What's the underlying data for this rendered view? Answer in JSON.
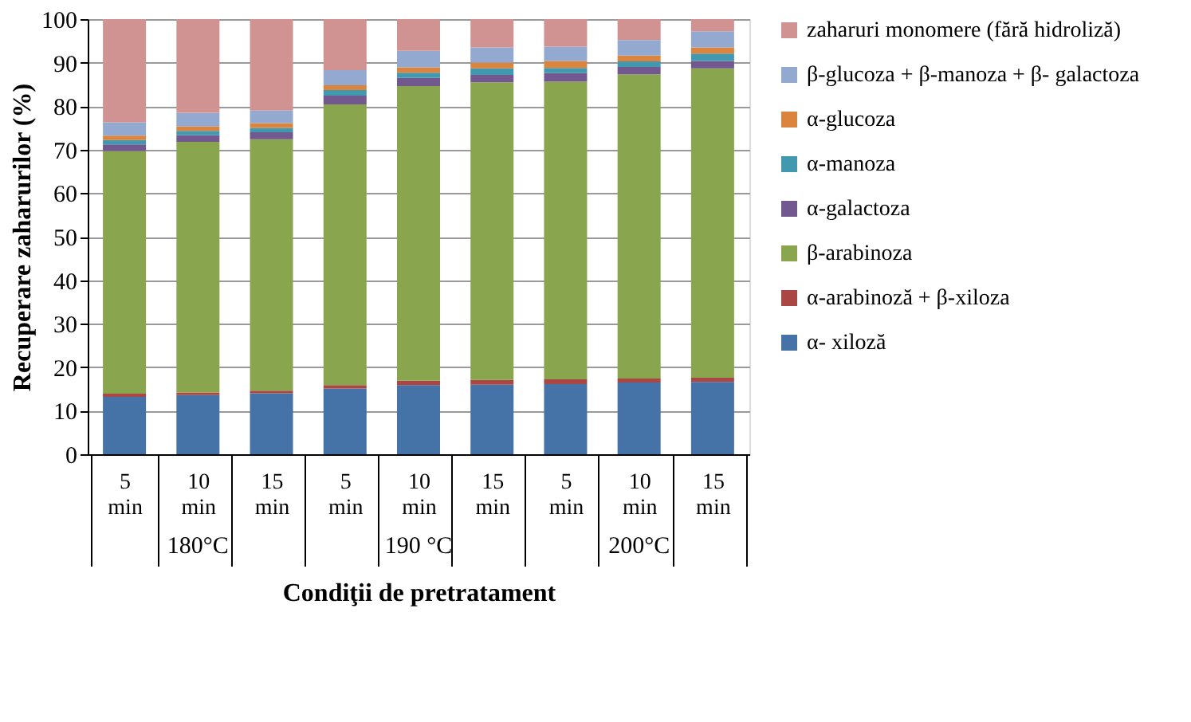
{
  "chart_data": {
    "type": "bar",
    "stacked": true,
    "xlabel": "Condiţii de pretratament",
    "ylabel": "Recuperare zaharurilor (%)",
    "categories": [
      "5 min",
      "10 min",
      "15 min",
      "5 min",
      "10 min",
      "15 min",
      "5 min",
      "10 min",
      "15 min"
    ],
    "annotations": [
      "180°C",
      "190 °C",
      "200°C"
    ],
    "ylim": [
      0,
      100
    ],
    "yticks": [
      0,
      10,
      20,
      30,
      40,
      50,
      60,
      70,
      80,
      90,
      100
    ],
    "grid": "y",
    "legend": "right",
    "series": [
      {
        "name": "α- xiloză",
        "color": "#4572a7",
        "values": [
          13.2,
          13.6,
          14.0,
          15.1,
          15.9,
          16.0,
          16.1,
          16.5,
          16.6
        ]
      },
      {
        "name": "α-arabinoză + β-xiloza",
        "color": "#aa4643",
        "values": [
          0.7,
          0.6,
          0.6,
          0.8,
          1.0,
          1.1,
          1.1,
          0.9,
          1.0
        ]
      },
      {
        "name": "β-arabinoza",
        "color": "#89a54e",
        "values": [
          55.8,
          57.6,
          57.8,
          64.5,
          67.7,
          68.4,
          68.4,
          69.9,
          71.1
        ]
      },
      {
        "name": "α-galactoza",
        "color": "#71588f",
        "values": [
          1.5,
          1.5,
          1.6,
          2.0,
          1.9,
          1.7,
          2.0,
          1.7,
          1.7
        ]
      },
      {
        "name": "α-manoza",
        "color": "#4198af",
        "values": [
          1.0,
          1.0,
          1.0,
          1.3,
          1.2,
          1.5,
          1.2,
          1.3,
          1.7
        ]
      },
      {
        "name": "α-glucoza",
        "color": "#db843d",
        "values": [
          1.0,
          1.0,
          1.1,
          1.1,
          1.2,
          1.3,
          1.6,
          1.3,
          1.4
        ]
      },
      {
        "name": "β-glucoza + β-manoza + β- galactoza",
        "color": "#93a9cf",
        "values": [
          3.1,
          3.2,
          2.9,
          3.5,
          3.8,
          3.5,
          3.3,
          3.6,
          3.7
        ]
      },
      {
        "name": "zaharuri monomere (fără hidroliză)",
        "color": "#d19392",
        "values": [
          23.7,
          21.5,
          21.0,
          11.7,
          7.3,
          6.5,
          6.3,
          4.8,
          2.8
        ]
      }
    ]
  }
}
